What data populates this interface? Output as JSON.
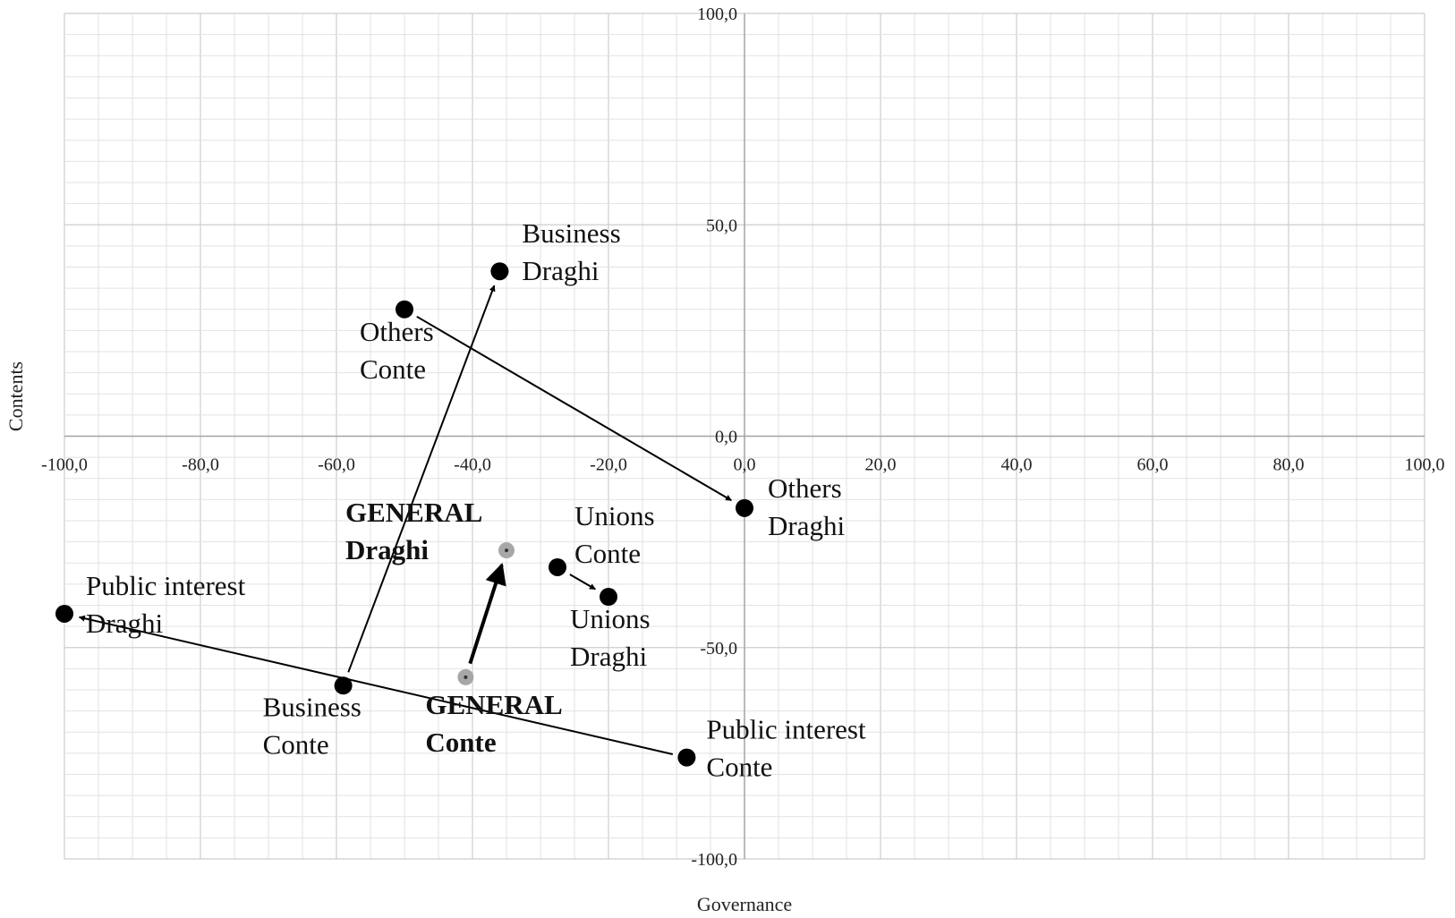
{
  "chart_data": {
    "type": "scatter",
    "title": "",
    "xlabel": "Governance",
    "ylabel": "Contents",
    "xlim": [
      -100,
      100
    ],
    "ylim": [
      -100,
      100
    ],
    "grid": true,
    "x_ticks": [
      "-100,0",
      "-80,0",
      "-60,0",
      "-40,0",
      "-20,0",
      "0,0",
      "20,0",
      "40,0",
      "60,0",
      "80,0",
      "100,0"
    ],
    "y_ticks": [
      "100,0",
      "50,0",
      "0,0",
      "-50,0",
      "-100,0"
    ],
    "points": [
      {
        "id": "business-conte",
        "label": [
          "Business",
          "Conte"
        ],
        "x": -59,
        "y": -59,
        "style": "black",
        "bold": false
      },
      {
        "id": "business-draghi",
        "label": [
          "Business",
          "Draghi"
        ],
        "x": -36,
        "y": 39,
        "style": "black",
        "bold": false
      },
      {
        "id": "others-conte",
        "label": [
          "Others",
          "Conte"
        ],
        "x": -50,
        "y": 30,
        "style": "black",
        "bold": false
      },
      {
        "id": "others-draghi",
        "label": [
          "Others",
          "Draghi"
        ],
        "x": 0,
        "y": -17,
        "style": "black",
        "bold": false
      },
      {
        "id": "unions-conte",
        "label": [
          "Unions",
          "Conte"
        ],
        "x": -27.5,
        "y": -31,
        "style": "black",
        "bold": false
      },
      {
        "id": "unions-draghi",
        "label": [
          "Unions",
          "Draghi"
        ],
        "x": -20,
        "y": -38,
        "style": "black",
        "bold": false
      },
      {
        "id": "public-interest-conte",
        "label": [
          "Public interest",
          "Conte"
        ],
        "x": -8.5,
        "y": -76,
        "style": "black",
        "bold": false
      },
      {
        "id": "public-interest-draghi",
        "label": [
          "Public interest",
          "Draghi"
        ],
        "x": -100,
        "y": -42,
        "style": "black",
        "bold": false
      },
      {
        "id": "general-conte",
        "label": [
          "GENERAL",
          "Conte"
        ],
        "x": -41,
        "y": -57,
        "style": "grey",
        "bold": true
      },
      {
        "id": "general-draghi",
        "label": [
          "GENERAL",
          "Draghi"
        ],
        "x": -35,
        "y": -27,
        "style": "grey",
        "bold": true
      }
    ],
    "arrows": [
      {
        "from": "business-conte",
        "to": "business-draghi",
        "bold": false
      },
      {
        "from": "others-conte",
        "to": "others-draghi",
        "bold": false
      },
      {
        "from": "unions-conte",
        "to": "unions-draghi",
        "bold": false
      },
      {
        "from": "public-interest-conte",
        "to": "public-interest-draghi",
        "bold": false
      },
      {
        "from": "general-conte",
        "to": "general-draghi",
        "bold": true
      }
    ]
  }
}
